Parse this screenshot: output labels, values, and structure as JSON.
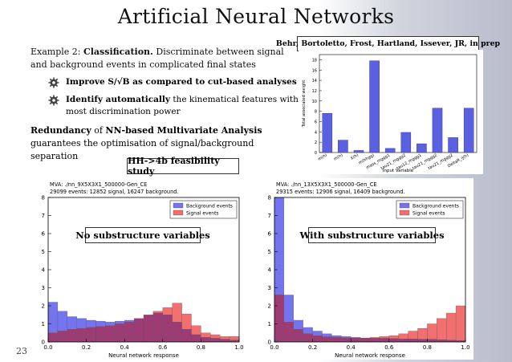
{
  "title": "Artificial Neural Networks",
  "citation": "Behr, Bortoletto, Frost, Hartland, Issever, JR, in prep",
  "example": {
    "prefix": "Example 2: ",
    "bold": "Classification.",
    "rest": " Discriminate between signal and background events in complicated final states"
  },
  "bullets": [
    {
      "bold": "Improve S/√B as compared to cut-based analyses",
      "rest": ""
    },
    {
      "bold": "Identify automatically",
      "rest": " the kinematical features with most discrimination power"
    }
  ],
  "redundancy": {
    "bold1": "Redundancy",
    "mid": " of ",
    "bold2": "NN-based Multivariate Analysis",
    "rest": " guarantees the optimisation of signal/background separation"
  },
  "feasibility_label": "HH->4b feasibility study",
  "page_number": "23",
  "colors": {
    "background": "#7474ee",
    "signal": "#f26f6f",
    "overlap": "#9d3c74",
    "bar": "#5b60e0"
  },
  "chart_data": [
    {
      "type": "bar",
      "ylabel": "Total associated weight",
      "xlabel": "Input Variable",
      "categories": [
        "m(h)",
        "m(h)",
        "X(h)",
        "m(hhgg)",
        "mass_mggg1",
        "tau21_mggg2",
        "tau12_mggg1",
        "tau21_mggg2",
        "tau21_mggg2",
        "DeltaR_ij(h)"
      ],
      "values": [
        7.6,
        2.4,
        0.4,
        17.8,
        0.8,
        3.9,
        1.7,
        8.6,
        2.9,
        8.6
      ],
      "yticks": [
        0,
        2,
        4,
        6,
        8,
        10,
        12,
        14,
        16,
        18
      ],
      "ylim": [
        0,
        19
      ]
    },
    {
      "type": "bar",
      "overlay_label": "No substructure variables",
      "info_line1": "MVA: ./nn_9X5X3X1_500000-Gen_CE",
      "info_line2": "29099 events: 12852 signal, 16247 background.",
      "xlabel": "Neural network response",
      "legend": [
        "Background events",
        "Signal events"
      ],
      "xlim": [
        0.0,
        1.0
      ],
      "ylim": [
        0,
        8
      ],
      "xticks": [
        "0.0",
        "0.2",
        "0.4",
        "0.6",
        "0.8",
        "1.0"
      ],
      "yticks": [
        "0",
        "1",
        "2",
        "3",
        "4",
        "5",
        "6",
        "7",
        "8"
      ],
      "bin_width": 0.05,
      "series": [
        {
          "name": "Background events",
          "values": [
            2.2,
            1.7,
            1.4,
            1.3,
            1.2,
            1.15,
            1.1,
            1.15,
            1.2,
            1.3,
            1.5,
            1.6,
            1.5,
            1.1,
            0.7,
            0.4,
            0.25,
            0.2,
            0.15,
            0.1
          ]
        },
        {
          "name": "Signal events",
          "values": [
            0.5,
            0.6,
            0.7,
            0.75,
            0.8,
            0.85,
            0.9,
            1.0,
            1.1,
            1.3,
            1.5,
            1.7,
            1.9,
            2.15,
            1.55,
            0.9,
            0.5,
            0.4,
            0.3,
            0.3
          ]
        }
      ]
    },
    {
      "type": "bar",
      "overlay_label": "With substructure variables",
      "info_line1": "MVA: ./nn_13X5X3X1_500000-Gen_CE",
      "info_line2": "29315 events: 12906 signal, 16409 background.",
      "xlabel": "Neural network response",
      "legend": [
        "Background events",
        "Signal events"
      ],
      "xlim": [
        0.0,
        1.0
      ],
      "ylim": [
        0,
        8
      ],
      "xticks": [
        "0.0",
        "0.2",
        "0.4",
        "0.6",
        "0.8",
        "1.0"
      ],
      "yticks": [
        "0",
        "1",
        "2",
        "3",
        "4",
        "5",
        "6",
        "7",
        "8"
      ],
      "bin_width": 0.05,
      "series": [
        {
          "name": "Background events",
          "values": [
            8.0,
            2.6,
            1.2,
            0.8,
            0.6,
            0.45,
            0.35,
            0.3,
            0.25,
            0.22,
            0.2,
            0.2,
            0.18,
            0.17,
            0.16,
            0.15,
            0.14,
            0.12,
            0.1,
            0.08
          ]
        },
        {
          "name": "Signal events",
          "values": [
            2.6,
            1.1,
            0.7,
            0.45,
            0.35,
            0.28,
            0.25,
            0.22,
            0.22,
            0.22,
            0.25,
            0.3,
            0.35,
            0.45,
            0.6,
            0.75,
            1.0,
            1.3,
            1.6,
            2.0
          ]
        }
      ]
    }
  ]
}
